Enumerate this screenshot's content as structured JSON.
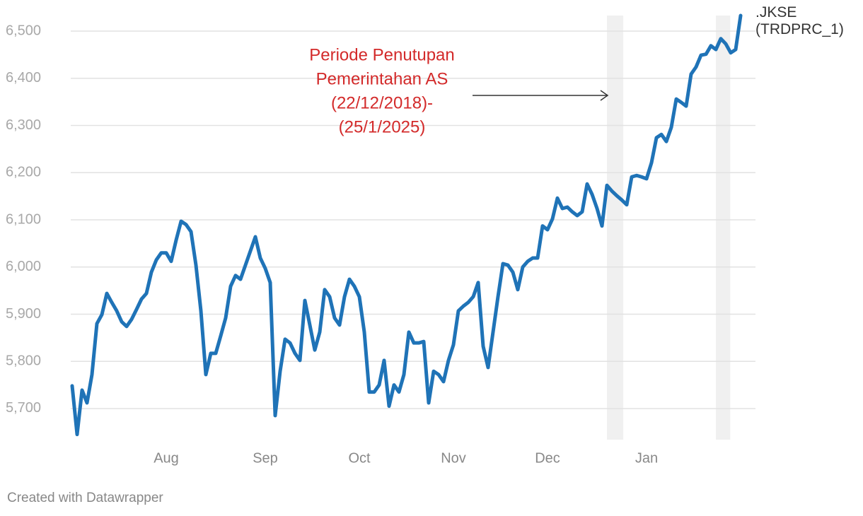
{
  "chart_data": {
    "type": "line",
    "categories": [
      null,
      null,
      null,
      null,
      null,
      null,
      null,
      null,
      null,
      null,
      null,
      null,
      null,
      null,
      null,
      null,
      null,
      null,
      null,
      "Aug",
      null,
      null,
      null,
      null,
      null,
      null,
      null,
      null,
      null,
      null,
      null,
      null,
      null,
      null,
      null,
      null,
      null,
      null,
      null,
      "Sep",
      null,
      null,
      null,
      null,
      null,
      null,
      null,
      null,
      null,
      null,
      null,
      null,
      null,
      null,
      null,
      null,
      null,
      null,
      "Oct",
      null,
      null,
      null,
      null,
      null,
      null,
      null,
      null,
      null,
      null,
      null,
      null,
      null,
      null,
      null,
      null,
      null,
      null,
      "Nov",
      null,
      null,
      null,
      null,
      null,
      null,
      null,
      null,
      null,
      null,
      null,
      null,
      null,
      null,
      null,
      null,
      null,
      null,
      "Dec",
      null,
      null,
      null,
      null,
      null,
      null,
      null,
      null,
      null,
      null,
      null,
      null,
      null,
      null,
      null,
      null,
      null,
      null,
      null,
      "Jan",
      null,
      null,
      null,
      null,
      null,
      null,
      null,
      null,
      null,
      null,
      null,
      null,
      null,
      null,
      null,
      null,
      null,
      null,
      null
    ],
    "series": [
      {
        "name": ".JKSE (TRDPRC_1)",
        "color": "#1f73b7",
        "values": [
          5748,
          5645,
          5739,
          5712,
          5772,
          5880,
          5899,
          5944,
          5925,
          5907,
          5884,
          5874,
          5889,
          5910,
          5932,
          5944,
          5989,
          6015,
          6030,
          6030,
          6012,
          6057,
          6097,
          6090,
          6075,
          6004,
          5907,
          5772,
          5817,
          5817,
          5854,
          5892,
          5959,
          5982,
          5974,
          6004,
          6034,
          6064,
          6019,
          5997,
          5967,
          5685,
          5779,
          5847,
          5839,
          5817,
          5802,
          5929,
          5877,
          5824,
          5862,
          5952,
          5937,
          5892,
          5877,
          5937,
          5974,
          5959,
          5937,
          5862,
          5735,
          5735,
          5750,
          5802,
          5705,
          5750,
          5735,
          5772,
          5862,
          5839,
          5839,
          5842,
          5712,
          5779,
          5772,
          5757,
          5802,
          5835,
          5907,
          5917,
          5925,
          5937,
          5967,
          5832,
          5787,
          5862,
          5937,
          6007,
          6004,
          5989,
          5952,
          6000,
          6012,
          6019,
          6019,
          6087,
          6079,
          6102,
          6146,
          6124,
          6127,
          6117,
          6109,
          6117,
          6176,
          6154,
          6124,
          6087,
          6173,
          6161,
          6151,
          6142,
          6132,
          6191,
          6194,
          6191,
          6187,
          6221,
          6274,
          6281,
          6266,
          6296,
          6356,
          6349,
          6341,
          6409,
          6424,
          6449,
          6451,
          6469,
          6461,
          6484,
          6473,
          6454,
          6461,
          6533
        ]
      }
    ],
    "ylim": [
      5634,
      6533
    ],
    "yticks": [
      {
        "value": 5700,
        "label": "5,700"
      },
      {
        "value": 5800,
        "label": "5,800"
      },
      {
        "value": 5900,
        "label": "5,900"
      },
      {
        "value": 6000,
        "label": "6,000"
      },
      {
        "value": 6100,
        "label": "6,100"
      },
      {
        "value": 6200,
        "label": "6,200"
      },
      {
        "value": 6300,
        "label": "6,300"
      },
      {
        "value": 6400,
        "label": "6,400"
      },
      {
        "value": 6500,
        "label": "6,500"
      }
    ],
    "grid": true,
    "shaded_ranges": [
      [
        108,
        111.3
      ],
      [
        130,
        132.9
      ]
    ],
    "shade_color": "#f0f0f0",
    "annotation": {
      "lines": [
        "Periode Penutupan",
        "Pemerintahan AS",
        "(22/12/2018)-",
        "(25/1/2025)"
      ],
      "color": "#d32a2a"
    },
    "footer": "Created with Datawrapper"
  }
}
